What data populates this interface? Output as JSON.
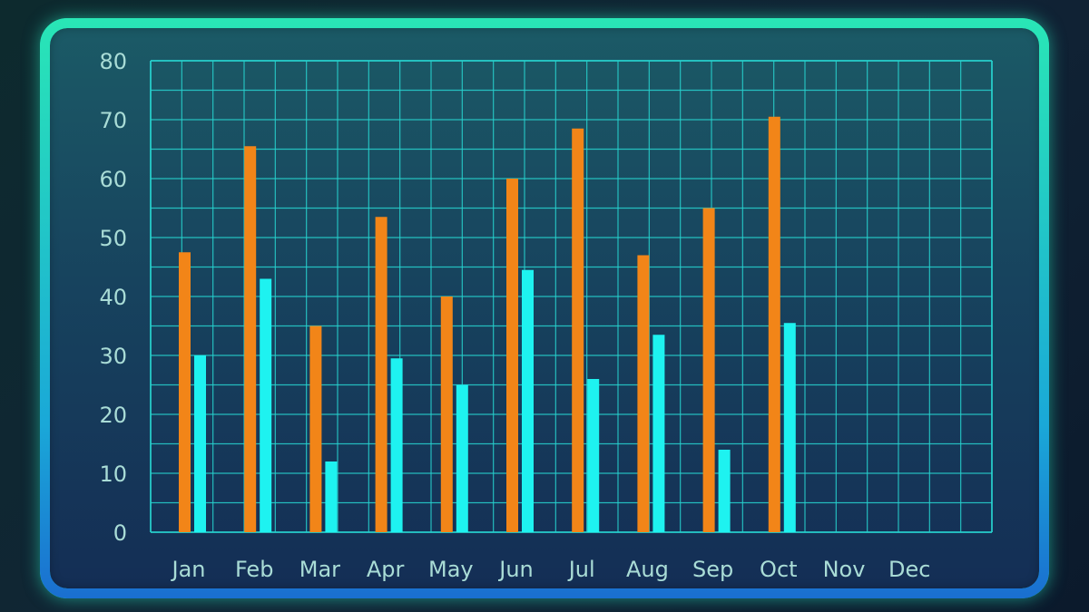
{
  "chart_data": {
    "type": "bar",
    "title": "",
    "xlabel": "",
    "ylabel": "",
    "categories": [
      "Jan",
      "Feb",
      "Mar",
      "Apr",
      "May",
      "Jun",
      "Jul",
      "Aug",
      "Sep",
      "Oct",
      "Nov",
      "Dec"
    ],
    "series": [
      {
        "color": "#f28518",
        "values": [
          47.5,
          65.5,
          35,
          53.5,
          40,
          60,
          68.5,
          47,
          55,
          70.5,
          null,
          null
        ]
      },
      {
        "color": "#1ef2f0",
        "values": [
          30,
          43,
          12,
          29.5,
          25,
          44.5,
          26,
          33.5,
          14,
          35.5,
          null,
          null
        ]
      }
    ],
    "ylim": [
      0,
      80
    ],
    "yticks": [
      0,
      10,
      20,
      30,
      40,
      50,
      60,
      70,
      80
    ],
    "grid": true,
    "legend": "none",
    "colors": {
      "grid": "#27d3cf",
      "tick_text": "#a9dcd6"
    }
  }
}
